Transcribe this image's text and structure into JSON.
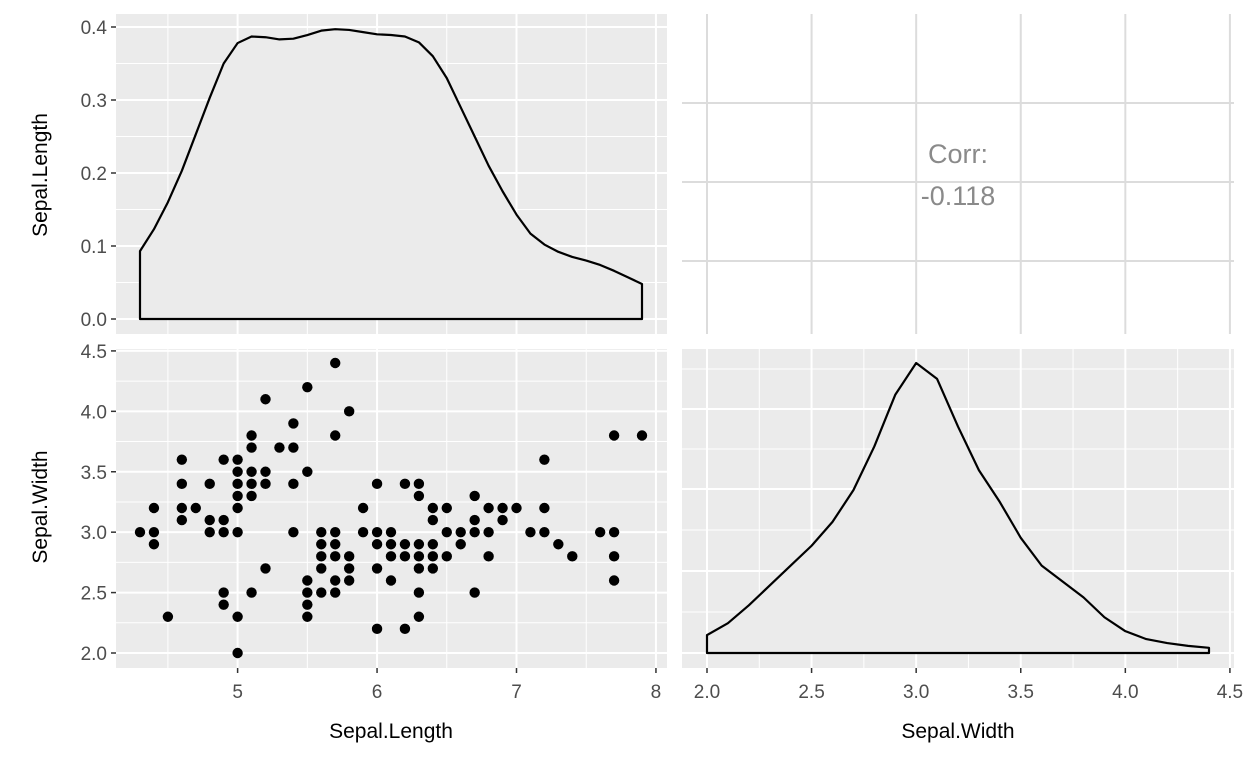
{
  "chart_data": {
    "type": "scatter",
    "layout": "2x2 pairs plot",
    "variables": [
      "Sepal.Length",
      "Sepal.Width"
    ],
    "background": "#EBEBEB",
    "grid": true,
    "colors": {
      "panel": "#EBEBEB",
      "grid": "#FFFFFF",
      "points": "#000000",
      "line": "#000000",
      "corr_text": "#8A8A8A",
      "tick_text": "#4D4D4D"
    },
    "panels": {
      "density_sepal_length": {
        "type": "area",
        "variable": "Sepal.Length",
        "xlim": [
          4.3,
          7.9
        ],
        "ylim": [
          0,
          0.4
        ],
        "y_ticks": [
          "0.0",
          "0.1",
          "0.2",
          "0.3",
          "0.4"
        ],
        "y_tick_values": [
          0,
          0.1,
          0.2,
          0.3,
          0.4
        ],
        "x": [
          4.3,
          4.4,
          4.5,
          4.6,
          4.7,
          4.8,
          4.9,
          5.0,
          5.1,
          5.2,
          5.3,
          5.4,
          5.5,
          5.6,
          5.7,
          5.8,
          5.9,
          6.0,
          6.1,
          6.2,
          6.3,
          6.4,
          6.5,
          6.6,
          6.7,
          6.8,
          6.9,
          7.0,
          7.1,
          7.2,
          7.3,
          7.4,
          7.5,
          7.6,
          7.7,
          7.8,
          7.9
        ],
        "y": [
          0.093,
          0.123,
          0.16,
          0.203,
          0.253,
          0.303,
          0.35,
          0.378,
          0.387,
          0.386,
          0.383,
          0.384,
          0.389,
          0.395,
          0.397,
          0.396,
          0.393,
          0.39,
          0.389,
          0.387,
          0.379,
          0.36,
          0.33,
          0.29,
          0.25,
          0.21,
          0.175,
          0.143,
          0.117,
          0.102,
          0.092,
          0.085,
          0.08,
          0.074,
          0.066,
          0.057,
          0.048
        ]
      },
      "correlation": {
        "label": "Corr:",
        "value": "-0.118"
      },
      "scatter": {
        "type": "scatter",
        "xlabel": "Sepal.Length",
        "ylabel": "Sepal.Width",
        "xlim": [
          4.3,
          7.9
        ],
        "ylim": [
          2.0,
          4.4
        ],
        "x_ticks": [
          "5",
          "6",
          "7",
          "8"
        ],
        "x_tick_values": [
          5,
          6,
          7,
          8
        ],
        "y_ticks": [
          "2.0",
          "2.5",
          "3.0",
          "3.5",
          "4.0",
          "4.5"
        ],
        "y_tick_values": [
          2.0,
          2.5,
          3.0,
          3.5,
          4.0,
          4.5
        ],
        "points": [
          [
            4.3,
            3.0
          ],
          [
            4.4,
            3.0
          ],
          [
            4.4,
            3.2
          ],
          [
            4.4,
            2.9
          ],
          [
            4.5,
            2.3
          ],
          [
            4.6,
            3.6
          ],
          [
            4.6,
            3.4
          ],
          [
            4.6,
            3.2
          ],
          [
            4.6,
            3.1
          ],
          [
            4.7,
            3.2
          ],
          [
            4.8,
            3.4
          ],
          [
            4.8,
            3.1
          ],
          [
            4.8,
            3.0
          ],
          [
            4.9,
            3.6
          ],
          [
            4.9,
            3.1
          ],
          [
            4.9,
            3.0
          ],
          [
            4.9,
            2.5
          ],
          [
            4.9,
            2.4
          ],
          [
            5.0,
            3.6
          ],
          [
            5.0,
            3.5
          ],
          [
            5.0,
            3.4
          ],
          [
            5.0,
            3.3
          ],
          [
            5.0,
            3.2
          ],
          [
            5.0,
            3.0
          ],
          [
            5.0,
            2.3
          ],
          [
            5.0,
            2.0
          ],
          [
            5.1,
            3.8
          ],
          [
            5.1,
            3.7
          ],
          [
            5.1,
            3.5
          ],
          [
            5.1,
            3.4
          ],
          [
            5.1,
            3.3
          ],
          [
            5.1,
            2.5
          ],
          [
            5.2,
            4.1
          ],
          [
            5.2,
            3.5
          ],
          [
            5.2,
            3.4
          ],
          [
            5.2,
            2.7
          ],
          [
            5.3,
            3.7
          ],
          [
            5.4,
            3.9
          ],
          [
            5.4,
            3.7
          ],
          [
            5.4,
            3.4
          ],
          [
            5.4,
            3.0
          ],
          [
            5.5,
            4.2
          ],
          [
            5.5,
            3.5
          ],
          [
            5.5,
            2.6
          ],
          [
            5.5,
            2.5
          ],
          [
            5.5,
            2.4
          ],
          [
            5.5,
            2.3
          ],
          [
            5.6,
            3.0
          ],
          [
            5.6,
            2.9
          ],
          [
            5.6,
            2.8
          ],
          [
            5.6,
            2.7
          ],
          [
            5.6,
            2.5
          ],
          [
            5.7,
            4.4
          ],
          [
            5.7,
            3.8
          ],
          [
            5.7,
            3.0
          ],
          [
            5.7,
            2.9
          ],
          [
            5.7,
            2.8
          ],
          [
            5.7,
            2.6
          ],
          [
            5.7,
            2.5
          ],
          [
            5.8,
            4.0
          ],
          [
            5.8,
            2.8
          ],
          [
            5.8,
            2.7
          ],
          [
            5.8,
            2.6
          ],
          [
            5.9,
            3.2
          ],
          [
            5.9,
            3.0
          ],
          [
            6.0,
            3.4
          ],
          [
            6.0,
            3.0
          ],
          [
            6.0,
            2.9
          ],
          [
            6.0,
            2.7
          ],
          [
            6.0,
            2.2
          ],
          [
            6.1,
            3.0
          ],
          [
            6.1,
            2.9
          ],
          [
            6.1,
            2.8
          ],
          [
            6.1,
            2.6
          ],
          [
            6.2,
            3.4
          ],
          [
            6.2,
            2.9
          ],
          [
            6.2,
            2.8
          ],
          [
            6.2,
            2.2
          ],
          [
            6.3,
            3.4
          ],
          [
            6.3,
            3.3
          ],
          [
            6.3,
            2.9
          ],
          [
            6.3,
            2.8
          ],
          [
            6.3,
            2.7
          ],
          [
            6.3,
            2.5
          ],
          [
            6.3,
            2.3
          ],
          [
            6.4,
            3.2
          ],
          [
            6.4,
            3.1
          ],
          [
            6.4,
            2.9
          ],
          [
            6.4,
            2.8
          ],
          [
            6.4,
            2.7
          ],
          [
            6.5,
            3.2
          ],
          [
            6.5,
            3.0
          ],
          [
            6.5,
            2.8
          ],
          [
            6.6,
            3.0
          ],
          [
            6.6,
            2.9
          ],
          [
            6.7,
            3.3
          ],
          [
            6.7,
            3.1
          ],
          [
            6.7,
            3.0
          ],
          [
            6.7,
            2.5
          ],
          [
            6.8,
            3.2
          ],
          [
            6.8,
            3.0
          ],
          [
            6.8,
            2.8
          ],
          [
            6.9,
            3.2
          ],
          [
            6.9,
            3.1
          ],
          [
            7.0,
            3.2
          ],
          [
            7.1,
            3.0
          ],
          [
            7.2,
            3.6
          ],
          [
            7.2,
            3.2
          ],
          [
            7.2,
            3.0
          ],
          [
            7.3,
            2.9
          ],
          [
            7.4,
            2.8
          ],
          [
            7.6,
            3.0
          ],
          [
            7.7,
            3.8
          ],
          [
            7.7,
            3.0
          ],
          [
            7.7,
            2.8
          ],
          [
            7.7,
            2.6
          ],
          [
            7.9,
            3.8
          ]
        ]
      },
      "density_sepal_width": {
        "type": "area",
        "variable": "Sepal.Width",
        "xlabel": "Sepal.Width",
        "xlim": [
          2.0,
          4.4
        ],
        "x_ticks": [
          "2.0",
          "2.5",
          "3.0",
          "3.5",
          "4.0",
          "4.5"
        ],
        "x_tick_values": [
          2.0,
          2.5,
          3.0,
          3.5,
          4.0,
          4.5
        ],
        "x": [
          2.0,
          2.1,
          2.2,
          2.3,
          2.4,
          2.5,
          2.6,
          2.7,
          2.8,
          2.9,
          3.0,
          3.1,
          3.2,
          3.3,
          3.4,
          3.5,
          3.6,
          3.7,
          3.8,
          3.9,
          4.0,
          4.1,
          4.2,
          4.3,
          4.4
        ],
        "y": [
          0.045,
          0.075,
          0.12,
          0.17,
          0.22,
          0.27,
          0.33,
          0.41,
          0.52,
          0.65,
          0.73,
          0.69,
          0.57,
          0.46,
          0.38,
          0.29,
          0.22,
          0.18,
          0.14,
          0.09,
          0.055,
          0.035,
          0.025,
          0.018,
          0.013
        ]
      }
    }
  }
}
